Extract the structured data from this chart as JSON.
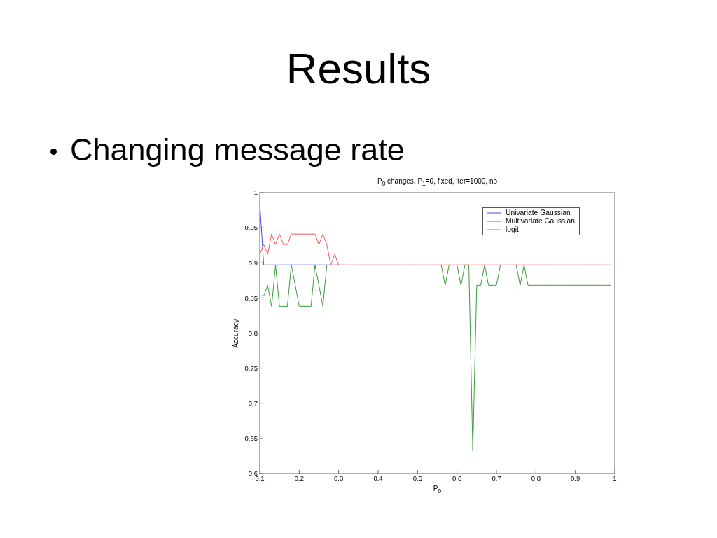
{
  "chart_data": {
    "type": "line",
    "title": "P$_{0}$ changes, P$_{1}$=0, fixed, iter=1000, no",
    "xlabel": "P$_{0}$",
    "ylabel": "Accuracy",
    "annotations": [
      "Results",
      "Changing message rate"
    ],
    "x": [
      0.1,
      0.11,
      0.12,
      0.13,
      0.14,
      0.15,
      0.16,
      0.17,
      0.18,
      0.19,
      0.2,
      0.21,
      0.22,
      0.23,
      0.24,
      0.25,
      0.26,
      0.27,
      0.28,
      0.29,
      0.3,
      0.31,
      0.32,
      0.33,
      0.34,
      0.35,
      0.36,
      0.37,
      0.38,
      0.39,
      0.4,
      0.41,
      0.42,
      0.43,
      0.44,
      0.45,
      0.46,
      0.47,
      0.48,
      0.49,
      0.5,
      0.51,
      0.52,
      0.53,
      0.54,
      0.55,
      0.56,
      0.57,
      0.58,
      0.59,
      0.6,
      0.61,
      0.62,
      0.63,
      0.64,
      0.65,
      0.66,
      0.67,
      0.68,
      0.69,
      0.7,
      0.71,
      0.72,
      0.73,
      0.74,
      0.75,
      0.76,
      0.77,
      0.78,
      0.79,
      0.8,
      0.81,
      0.82,
      0.83,
      0.84,
      0.85,
      0.86,
      0.87,
      0.88,
      0.89,
      0.9,
      0.91,
      0.92,
      0.93,
      0.94,
      0.95,
      0.96,
      0.97,
      0.98,
      0.99
    ],
    "series": [
      {
        "name": "Univariate Gaussian",
        "color": "#4a4aef",
        "values": [
          0.985,
          0.897,
          0.897,
          0.897,
          0.897,
          0.897,
          0.897,
          0.897,
          0.897,
          0.897,
          0.897,
          0.897,
          0.897,
          0.897,
          0.897,
          0.897,
          0.897,
          0.897,
          0.897,
          0.897,
          0.897,
          null,
          null,
          null,
          null,
          null,
          null,
          null,
          null,
          null,
          null,
          null,
          null,
          null,
          null,
          null,
          null,
          null,
          null,
          null,
          null,
          null,
          null,
          null,
          null,
          null,
          null,
          null,
          null,
          null,
          null,
          null,
          null,
          null,
          null,
          null,
          null,
          null,
          null,
          null,
          null,
          null,
          null,
          null,
          null,
          null,
          null,
          null,
          null,
          null,
          null,
          null,
          null,
          null,
          null,
          null,
          null,
          null,
          null,
          null,
          null,
          null,
          null,
          null,
          null,
          null,
          null,
          null,
          null,
          null
        ]
      },
      {
        "name": "Multivariate Gaussian",
        "color": "#3b9b3b",
        "values": [
          0.853,
          0.853,
          0.868,
          0.838,
          0.897,
          0.838,
          0.838,
          0.838,
          0.897,
          0.868,
          0.838,
          0.838,
          0.838,
          0.838,
          0.897,
          0.868,
          0.838,
          0.897,
          null,
          null,
          null,
          null,
          null,
          null,
          null,
          null,
          null,
          null,
          null,
          null,
          null,
          null,
          null,
          null,
          null,
          null,
          null,
          null,
          null,
          null,
          null,
          null,
          null,
          null,
          null,
          null,
          0.897,
          0.868,
          0.897,
          null,
          0.897,
          0.868,
          0.897,
          0.897,
          0.632,
          0.868,
          0.868,
          0.897,
          0.868,
          0.868,
          0.868,
          0.897,
          null,
          null,
          null,
          0.897,
          0.868,
          0.897,
          0.868,
          0.868,
          0.868,
          0.868,
          0.868,
          0.868,
          0.868,
          0.868,
          0.868,
          0.868,
          0.868,
          0.868,
          0.868,
          0.868,
          0.868,
          0.868,
          0.868,
          0.868,
          0.868,
          0.868,
          0.868,
          0.868
        ]
      },
      {
        "name": "logit",
        "color": "#f25757",
        "values": [
          0.912,
          0.926,
          0.912,
          0.941,
          0.926,
          0.941,
          0.926,
          0.926,
          0.941,
          0.941,
          0.941,
          0.941,
          0.941,
          0.941,
          0.941,
          0.926,
          0.941,
          0.926,
          0.897,
          0.912,
          0.897,
          0.897,
          0.897,
          0.897,
          0.897,
          0.897,
          0.897,
          0.897,
          0.897,
          0.897,
          0.897,
          0.897,
          0.897,
          0.897,
          0.897,
          0.897,
          0.897,
          0.897,
          0.897,
          0.897,
          0.897,
          0.897,
          0.897,
          0.897,
          0.897,
          0.897,
          0.897,
          0.897,
          0.897,
          0.897,
          0.897,
          0.897,
          0.897,
          0.897,
          0.897,
          0.897,
          0.897,
          0.897,
          0.897,
          0.897,
          0.897,
          0.897,
          0.897,
          0.897,
          0.897,
          0.897,
          0.897,
          0.897,
          0.897,
          0.897,
          0.897,
          0.897,
          0.897,
          0.897,
          0.897,
          0.897,
          0.897,
          0.897,
          0.897,
          0.897,
          0.897,
          0.897,
          0.897,
          0.897,
          0.897,
          0.897,
          0.897,
          0.897,
          0.897,
          0.897
        ]
      }
    ],
    "xlim": [
      0.1,
      1
    ],
    "ylim": [
      0.6,
      1
    ],
    "xticks": [
      0.1,
      0.2,
      0.3,
      0.4,
      0.5,
      0.6,
      0.7,
      0.8,
      0.9,
      1
    ],
    "yticks": [
      0.6,
      0.65,
      0.7,
      0.75,
      0.8,
      0.85,
      0.9,
      0.95,
      1
    ],
    "legend": "top right",
    "line_style": "solid"
  }
}
